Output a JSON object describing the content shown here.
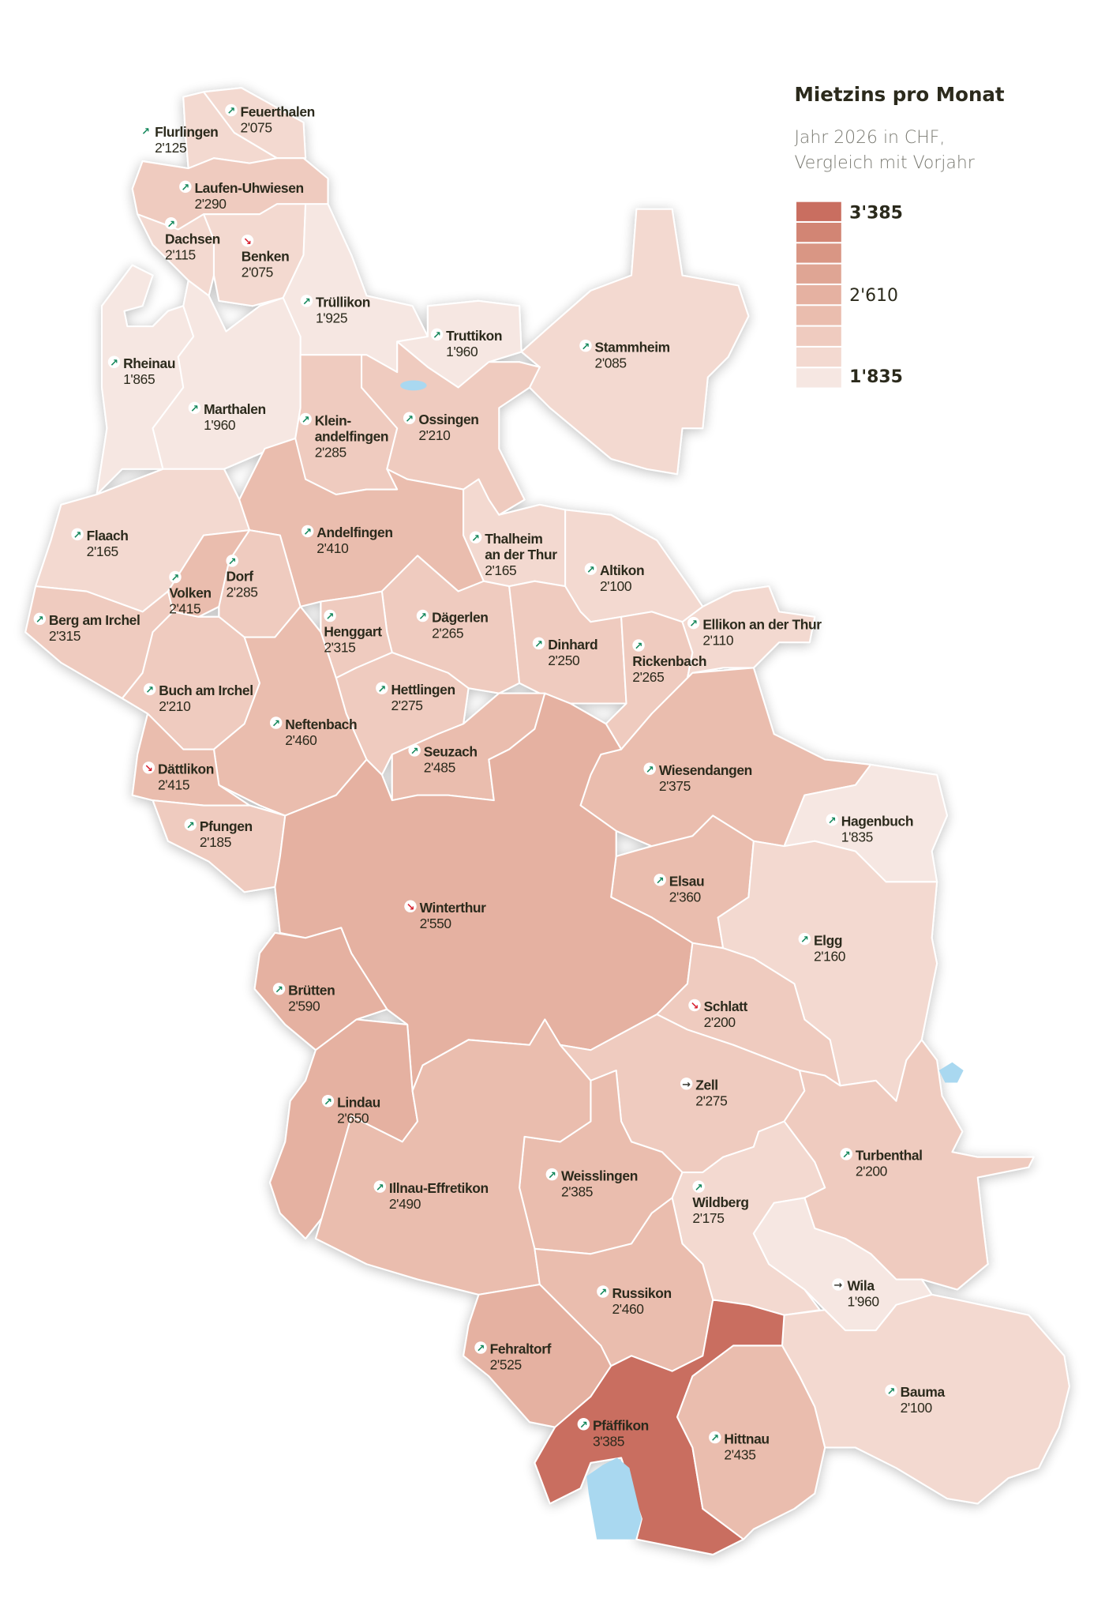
{
  "legend": {
    "title": "Mietzins pro Monat",
    "subtitle_line1": "Jahr 2026 in CHF,",
    "subtitle_line2": "Vergleich mit Vorjahr",
    "max_label": "3'385",
    "mid_label": "2'610",
    "min_label": "1'835",
    "min_value": 1835,
    "max_value": 3385,
    "classes": 9,
    "colors_light_to_dark": [
      "#f6e7e2",
      "#f3d9d0",
      "#efcbbf",
      "#eabdae",
      "#e5b1a1",
      "#dfa594",
      "#d99684",
      "#d28574",
      "#c96e60"
    ]
  },
  "trend_icons": {
    "up": {
      "icon": "arrow-up-right-icon",
      "glyph": "↗",
      "color": "#12875a"
    },
    "down": {
      "icon": "arrow-down-right-icon",
      "glyph": "↘",
      "color": "#d7202f"
    },
    "same": {
      "icon": "arrow-right-icon",
      "glyph": "→",
      "color": "#3a3a33"
    }
  },
  "colors": {
    "lake": "#a9d8f0",
    "border": "#ffffff",
    "text": "#2b2a1c"
  },
  "municipalities": [
    {
      "id": "flurlingen",
      "name": [
        "Flurlingen"
      ],
      "rent": "2'125",
      "trend": "up"
    },
    {
      "id": "feuerthalen",
      "name": [
        "Feuerthalen"
      ],
      "rent": "2'075",
      "trend": "up"
    },
    {
      "id": "laufen-uhwiesen",
      "name": [
        "Laufen-Uhwiesen"
      ],
      "rent": "2'290",
      "trend": "up"
    },
    {
      "id": "dachsen",
      "name": [
        "Dachsen"
      ],
      "rent": "2'115",
      "trend": "up"
    },
    {
      "id": "benken",
      "name": [
        "Benken"
      ],
      "rent": "2'075",
      "trend": "down"
    },
    {
      "id": "truellikon",
      "name": [
        "Trüllikon"
      ],
      "rent": "1'925",
      "trend": "up"
    },
    {
      "id": "truttikon",
      "name": [
        "Truttikon"
      ],
      "rent": "1'960",
      "trend": "up"
    },
    {
      "id": "stammheim",
      "name": [
        "Stammheim"
      ],
      "rent": "2'085",
      "trend": "up"
    },
    {
      "id": "rheinau",
      "name": [
        "Rheinau"
      ],
      "rent": "1'865",
      "trend": "up"
    },
    {
      "id": "marthalen",
      "name": [
        "Marthalen"
      ],
      "rent": "1'960",
      "trend": "up"
    },
    {
      "id": "kleinandelfingen",
      "name": [
        "Klein-",
        "andelfingen"
      ],
      "rent": "2'285",
      "trend": "up"
    },
    {
      "id": "ossingen",
      "name": [
        "Ossingen"
      ],
      "rent": "2'210",
      "trend": "up"
    },
    {
      "id": "flaach",
      "name": [
        "Flaach"
      ],
      "rent": "2'165",
      "trend": "up"
    },
    {
      "id": "andelfingen",
      "name": [
        "Andelfingen"
      ],
      "rent": "2'410",
      "trend": "up"
    },
    {
      "id": "thalheim",
      "name": [
        "Thalheim",
        "an der Thur"
      ],
      "rent": "2'165",
      "trend": "up"
    },
    {
      "id": "altikon",
      "name": [
        "Altikon"
      ],
      "rent": "2'100",
      "trend": "up"
    },
    {
      "id": "volken",
      "name": [
        "Volken"
      ],
      "rent": "2'415",
      "trend": "up"
    },
    {
      "id": "dorf",
      "name": [
        "Dorf"
      ],
      "rent": "2'285",
      "trend": "up"
    },
    {
      "id": "berg-am-irchel",
      "name": [
        "Berg am Irchel"
      ],
      "rent": "2'315",
      "trend": "up"
    },
    {
      "id": "daegerlen",
      "name": [
        "Dägerlen"
      ],
      "rent": "2'265",
      "trend": "up"
    },
    {
      "id": "henggart",
      "name": [
        "Henggart"
      ],
      "rent": "2'315",
      "trend": "up"
    },
    {
      "id": "dinhard",
      "name": [
        "Dinhard"
      ],
      "rent": "2'250",
      "trend": "up"
    },
    {
      "id": "rickenbach",
      "name": [
        "Rickenbach"
      ],
      "rent": "2'265",
      "trend": "up"
    },
    {
      "id": "ellikon",
      "name": [
        "Ellikon an der Thur"
      ],
      "rent": "2'110",
      "trend": "up"
    },
    {
      "id": "buch-am-irchel",
      "name": [
        "Buch am Irchel"
      ],
      "rent": "2'210",
      "trend": "up"
    },
    {
      "id": "hettlingen",
      "name": [
        "Hettlingen"
      ],
      "rent": "2'275",
      "trend": "up"
    },
    {
      "id": "neftenbach",
      "name": [
        "Neftenbach"
      ],
      "rent": "2'460",
      "trend": "up"
    },
    {
      "id": "seuzach",
      "name": [
        "Seuzach"
      ],
      "rent": "2'485",
      "trend": "up"
    },
    {
      "id": "daettlikon",
      "name": [
        "Dättlikon"
      ],
      "rent": "2'415",
      "trend": "down"
    },
    {
      "id": "wiesendangen",
      "name": [
        "Wiesendangen"
      ],
      "rent": "2'375",
      "trend": "up"
    },
    {
      "id": "hagenbuch",
      "name": [
        "Hagenbuch"
      ],
      "rent": "1'835",
      "trend": "up"
    },
    {
      "id": "pfungen",
      "name": [
        "Pfungen"
      ],
      "rent": "2'185",
      "trend": "up"
    },
    {
      "id": "elsau",
      "name": [
        "Elsau"
      ],
      "rent": "2'360",
      "trend": "up"
    },
    {
      "id": "winterthur",
      "name": [
        "Winterthur"
      ],
      "rent": "2'550",
      "trend": "down"
    },
    {
      "id": "elgg",
      "name": [
        "Elgg"
      ],
      "rent": "2'160",
      "trend": "up"
    },
    {
      "id": "bruetten",
      "name": [
        "Brütten"
      ],
      "rent": "2'590",
      "trend": "up"
    },
    {
      "id": "schlatt",
      "name": [
        "Schlatt"
      ],
      "rent": "2'200",
      "trend": "down"
    },
    {
      "id": "zell",
      "name": [
        "Zell"
      ],
      "rent": "2'275",
      "trend": "same"
    },
    {
      "id": "lindau",
      "name": [
        "Lindau"
      ],
      "rent": "2'650",
      "trend": "up"
    },
    {
      "id": "turbenthal",
      "name": [
        "Turbenthal"
      ],
      "rent": "2'200",
      "trend": "up"
    },
    {
      "id": "weisslingen",
      "name": [
        "Weisslingen"
      ],
      "rent": "2'385",
      "trend": "up"
    },
    {
      "id": "illnau-effretikon",
      "name": [
        "Illnau-Effretikon"
      ],
      "rent": "2'490",
      "trend": "up"
    },
    {
      "id": "wildberg",
      "name": [
        "Wildberg"
      ],
      "rent": "2'175",
      "trend": "up"
    },
    {
      "id": "wila",
      "name": [
        "Wila"
      ],
      "rent": "1'960",
      "trend": "same"
    },
    {
      "id": "russikon",
      "name": [
        "Russikon"
      ],
      "rent": "2'460",
      "trend": "up"
    },
    {
      "id": "fehraltorf",
      "name": [
        "Fehraltorf"
      ],
      "rent": "2'525",
      "trend": "up"
    },
    {
      "id": "bauma",
      "name": [
        "Bauma"
      ],
      "rent": "2'100",
      "trend": "up"
    },
    {
      "id": "pfaeffikon",
      "name": [
        "Pfäffikon"
      ],
      "rent": "3'385",
      "trend": "up"
    },
    {
      "id": "hittnau",
      "name": [
        "Hittnau"
      ],
      "rent": "2'435",
      "trend": "up"
    }
  ]
}
